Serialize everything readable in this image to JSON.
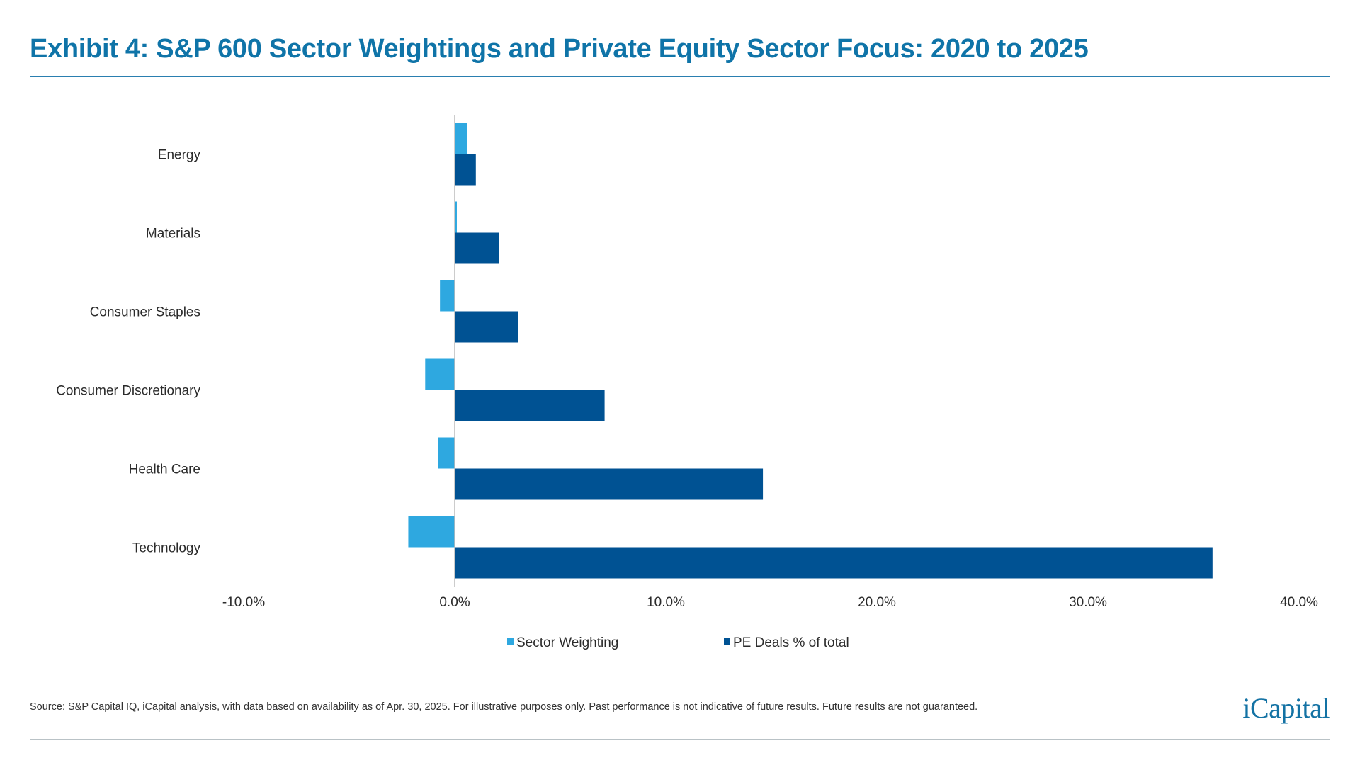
{
  "title": "Exhibit 4: S&P 600 Sector Weightings and Private Equity Sector Focus: 2020 to 2025",
  "source": "Source: S&P Capital IQ, iCapital analysis, with data based on availability as of Apr. 30, 2025. For illustrative purposes only. Past performance is not indicative of future results. Future results are not guaranteed.",
  "logo": "iCapital",
  "chart_data": {
    "type": "bar",
    "orientation": "horizontal",
    "categories": [
      "Energy",
      "Materials",
      "Consumer Staples",
      "Consumer Discretionary",
      "Health Care",
      "Technology"
    ],
    "series": [
      {
        "name": "Sector Weighting",
        "color": "#2ea8e0",
        "values": [
          0.6,
          0.1,
          -0.7,
          -1.4,
          -0.8,
          -2.2
        ]
      },
      {
        "name": "PE Deals % of total",
        "color": "#005293",
        "values": [
          1.0,
          2.1,
          3.0,
          7.1,
          14.6,
          35.9
        ]
      }
    ],
    "xlim": [
      -10,
      40
    ],
    "xticks": [
      "-10.0%",
      "0.0%",
      "10.0%",
      "20.0%",
      "30.0%",
      "40.0%"
    ],
    "xtick_values": [
      -10,
      0,
      10,
      20,
      30,
      40
    ],
    "grid": false,
    "legend_position": "bottom"
  }
}
